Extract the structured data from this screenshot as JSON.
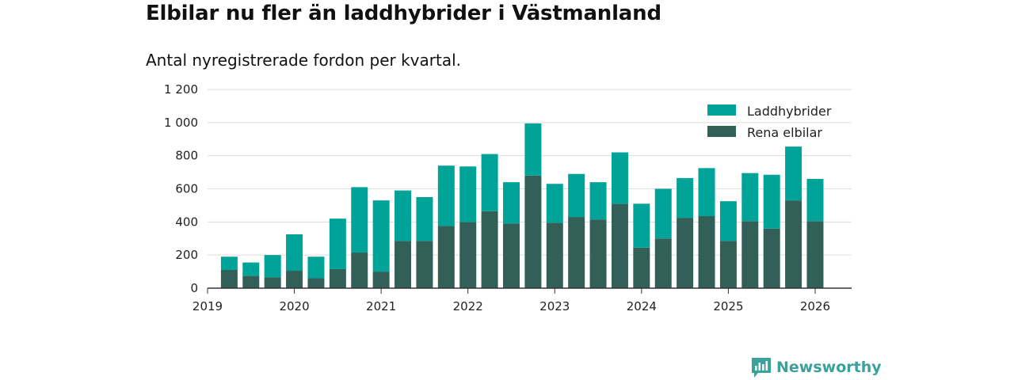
{
  "title": "Elbilar nu fler än laddhybrider i Västmanland",
  "subtitle": "Antal nyregistrerade fordon per kvartal.",
  "brand": {
    "name": "Newsworthy",
    "icon": "newsworthy-logo-icon"
  },
  "colors": {
    "ev": "#335f59",
    "phev": "#00a398",
    "grid": "#dddddd",
    "axis": "#333333"
  },
  "chart_data": {
    "type": "bar",
    "stacked": true,
    "title": "Elbilar nu fler än laddhybrider i Västmanland",
    "subtitle": "Antal nyregistrerade fordon per kvartal.",
    "xlabel": "",
    "ylabel": "",
    "ylim": [
      0,
      1200
    ],
    "yticks": [
      0,
      200,
      400,
      600,
      800,
      1000,
      1200
    ],
    "ytick_labels": [
      "0",
      "200",
      "400",
      "600",
      "800",
      "1 000",
      "1 200"
    ],
    "xlim": [
      2019.0,
      2026.42
    ],
    "xticks": [
      2019,
      2020,
      2021,
      2022,
      2023,
      2024,
      2025,
      2026
    ],
    "xtick_labels": [
      "2019",
      "2020",
      "2021",
      "2022",
      "2023",
      "2024",
      "2025",
      "2026"
    ],
    "legend_position": "top-right",
    "categories": [
      "2019-Q2",
      "2019-Q3",
      "2019-Q4",
      "2020-Q1",
      "2020-Q2",
      "2020-Q3",
      "2020-Q4",
      "2021-Q1",
      "2021-Q2",
      "2021-Q3",
      "2021-Q4",
      "2022-Q1",
      "2022-Q2",
      "2022-Q3",
      "2022-Q4",
      "2023-Q1",
      "2023-Q2",
      "2023-Q3",
      "2023-Q4",
      "2024-Q1",
      "2024-Q2",
      "2024-Q3",
      "2024-Q4",
      "2025-Q1",
      "2025-Q2",
      "2025-Q3",
      "2025-Q4",
      "2026-Q1"
    ],
    "x": [
      2019.25,
      2019.5,
      2019.75,
      2020.0,
      2020.25,
      2020.5,
      2020.75,
      2021.0,
      2021.25,
      2021.5,
      2021.75,
      2022.0,
      2022.25,
      2022.5,
      2022.75,
      2023.0,
      2023.25,
      2023.5,
      2023.75,
      2024.0,
      2024.25,
      2024.5,
      2024.75,
      2025.0,
      2025.25,
      2025.5,
      2025.75,
      2026.0
    ],
    "series": [
      {
        "name": "Rena elbilar",
        "color": "#335f59",
        "values": [
          110,
          75,
          65,
          105,
          60,
          115,
          215,
          100,
          285,
          285,
          375,
          400,
          465,
          390,
          680,
          395,
          430,
          415,
          510,
          245,
          300,
          425,
          435,
          285,
          405,
          360,
          530,
          405
        ]
      },
      {
        "name": "Laddhybrider",
        "color": "#00a398",
        "values": [
          80,
          80,
          135,
          220,
          130,
          305,
          395,
          430,
          305,
          265,
          365,
          335,
          345,
          250,
          315,
          235,
          260,
          225,
          310,
          265,
          300,
          240,
          290,
          240,
          290,
          325,
          325,
          255
        ]
      }
    ],
    "legend": [
      {
        "name": "Laddhybrider",
        "color": "#00a398"
      },
      {
        "name": "Rena elbilar",
        "color": "#335f59"
      }
    ]
  }
}
